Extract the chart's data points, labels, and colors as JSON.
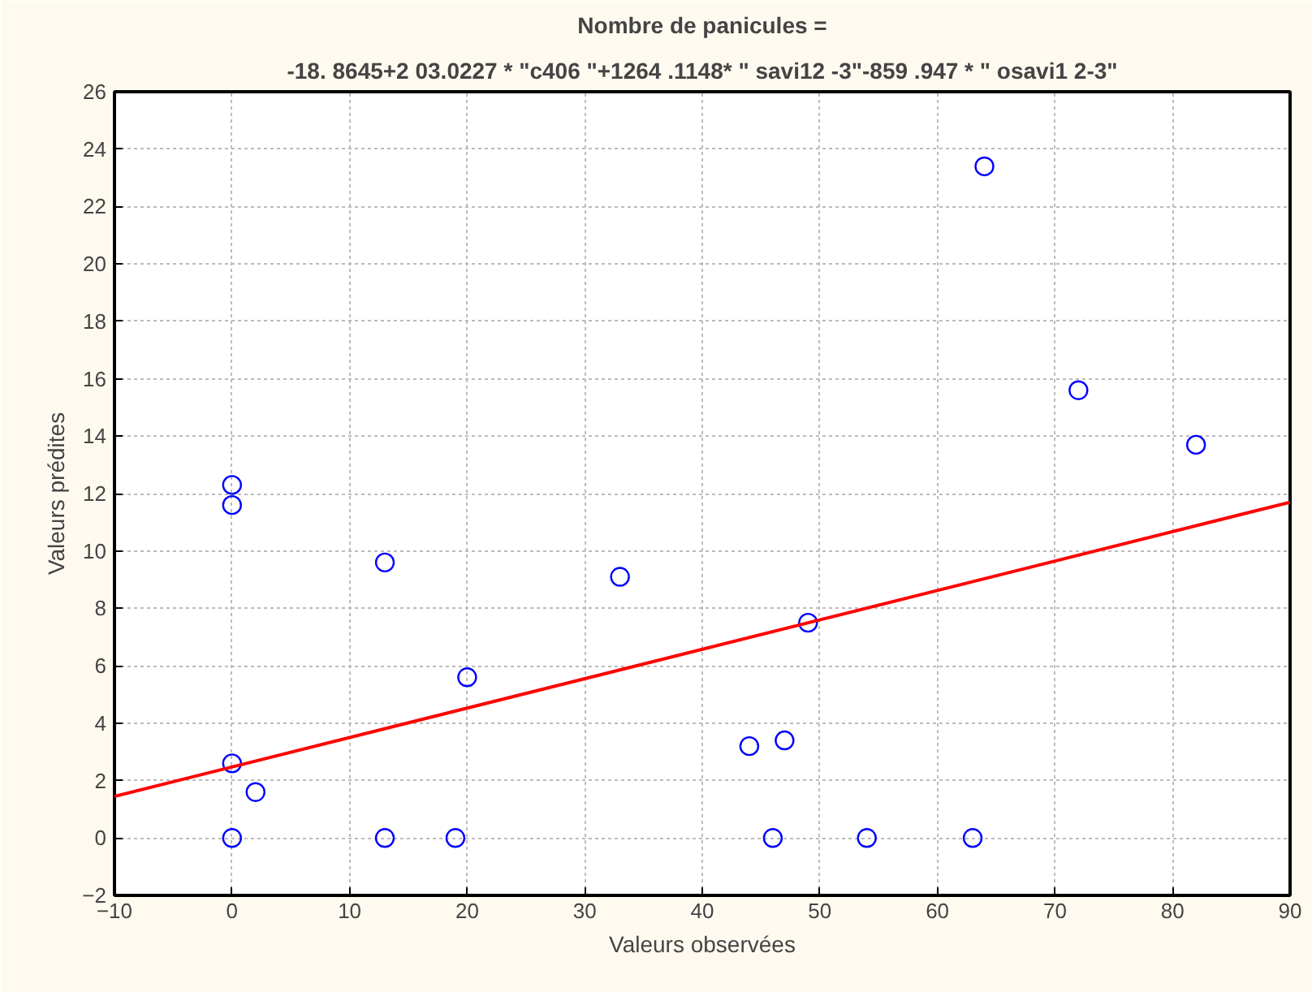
{
  "chart_data": {
    "type": "scatter",
    "title": "Nombre de panicules =",
    "subtitle": "-18. 8645+2 03.0227 * \"c406 \"+1264 .1148* \" savi12 -3\"-859 .947 * \" osavi1 2-3\"",
    "xlabel": "Valeurs observées",
    "ylabel": "Valeurs prédites",
    "xlim": [
      -10,
      90
    ],
    "ylim": [
      -2,
      26
    ],
    "xticks": [
      -10,
      0,
      10,
      20,
      30,
      40,
      50,
      60,
      70,
      80,
      90
    ],
    "yticks": [
      -2,
      0,
      2,
      4,
      6,
      8,
      10,
      12,
      14,
      16,
      18,
      20,
      22,
      24,
      26
    ],
    "grid": true,
    "marker": "circle",
    "series": [
      {
        "color": "#0000ff",
        "x": [
          0,
          0,
          0,
          0,
          2,
          13,
          13,
          19,
          20,
          33,
          44,
          46,
          47,
          49,
          54,
          63,
          64,
          72,
          82
        ],
        "values": [
          12.3,
          11.6,
          2.6,
          0,
          1.6,
          9.6,
          0,
          0,
          5.6,
          9.1,
          3.2,
          0,
          3.4,
          7.5,
          0,
          0,
          23.4,
          15.6,
          13.7
        ]
      },
      {
        "type": "line",
        "color": "#ff0000",
        "marker": "none",
        "line_style": "solid",
        "x": [
          -10,
          90
        ],
        "values": [
          1.45,
          11.7
        ]
      }
    ]
  }
}
